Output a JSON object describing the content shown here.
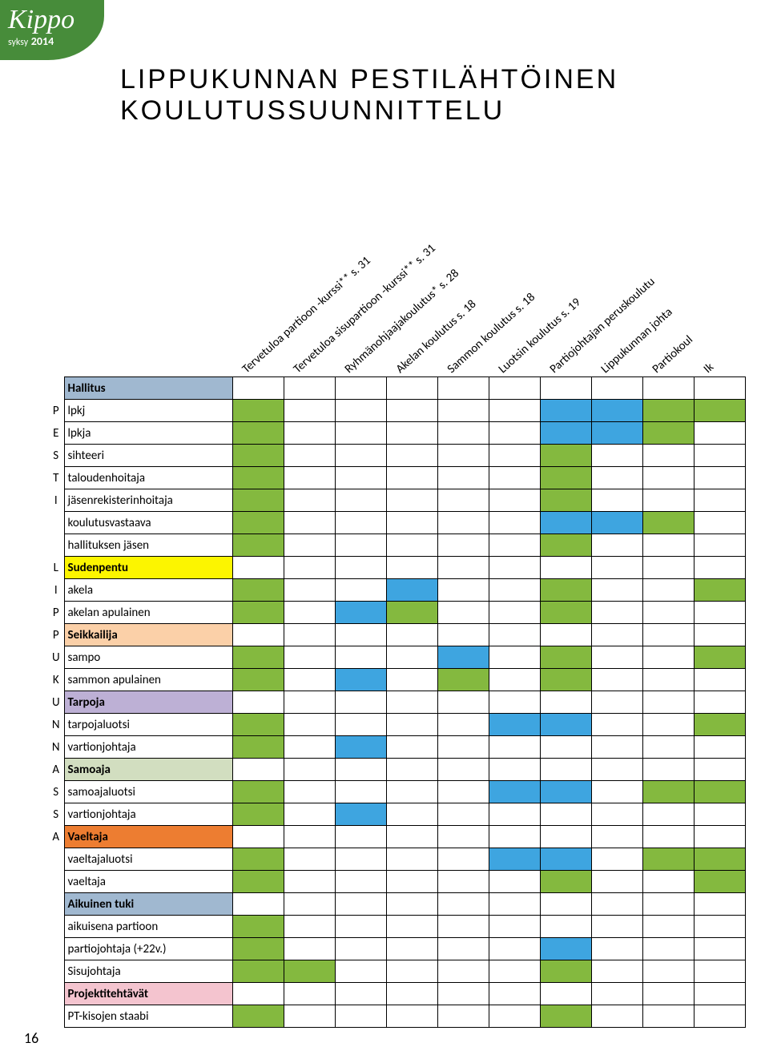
{
  "logo": {
    "name": "Kippo",
    "sub": "syksy",
    "year": "2014"
  },
  "title_line1": "LIPPUKUNNAN PESTILÄHTÖINEN",
  "title_line2": "KOULUTUSSUUNNITTELU",
  "page_number": "16",
  "num_data_cols": 10,
  "colors": {
    "green": "#84b93f",
    "blue": "#3ea5e0",
    "yellow": "#fcf500",
    "orange_light": "#fbd0a8",
    "purple": "#bdb0d5",
    "sage": "#d2dec0",
    "orange": "#ed7d31",
    "steel": "#a0b8d0",
    "pink": "#f4c4cf",
    "none": "#ffffff",
    "border": "#000000"
  },
  "diagonal_headers": [
    "Tervetuloa partioon -kurssi** s. 31",
    "Tervetuloa sisupartioon -kurssi** s. 31",
    "Ryhmänohjaajakoulutus* s. 28",
    "Akelan koulutus s. 18",
    "Sammon koulutus s. 18",
    "Luotsin koulutus s. 19",
    "Partiojohtajan peruskoulutu",
    "Lippukunnan johta",
    "Partiokoul",
    "Ik"
  ],
  "rows": [
    {
      "letter": "",
      "label": "Hallitus",
      "label_bg": "steel",
      "cells": [
        "",
        "",
        "",
        "",
        "",
        "",
        "",
        "",
        "",
        ""
      ]
    },
    {
      "letter": "P",
      "label": "lpkj",
      "label_bg": "none",
      "cells": [
        "green",
        "",
        "",
        "",
        "",
        "",
        "blue",
        "blue",
        "green",
        "green"
      ]
    },
    {
      "letter": "E",
      "label": "lpkja",
      "label_bg": "none",
      "cells": [
        "green",
        "",
        "",
        "",
        "",
        "",
        "blue",
        "blue",
        "green",
        ""
      ]
    },
    {
      "letter": "S",
      "label": "sihteeri",
      "label_bg": "none",
      "cells": [
        "green",
        "",
        "",
        "",
        "",
        "",
        "green",
        "",
        "",
        ""
      ]
    },
    {
      "letter": "T",
      "label": "taloudenhoitaja",
      "label_bg": "none",
      "cells": [
        "green",
        "",
        "",
        "",
        "",
        "",
        "green",
        "",
        "",
        ""
      ]
    },
    {
      "letter": "I",
      "label": "jäsenrekisterinhoitaja",
      "label_bg": "none",
      "cells": [
        "green",
        "",
        "",
        "",
        "",
        "",
        "green",
        "",
        "",
        ""
      ]
    },
    {
      "letter": "",
      "label": "koulutusvastaava",
      "label_bg": "none",
      "cells": [
        "green",
        "",
        "",
        "",
        "",
        "",
        "blue",
        "blue",
        "green",
        ""
      ]
    },
    {
      "letter": "",
      "label": "hallituksen jäsen",
      "label_bg": "none",
      "cells": [
        "green",
        "",
        "",
        "",
        "",
        "",
        "green",
        "",
        "",
        ""
      ]
    },
    {
      "letter": "L",
      "label": "Sudenpentu",
      "label_bg": "yellow",
      "cells": [
        "",
        "",
        "",
        "",
        "",
        "",
        "",
        "",
        "",
        ""
      ]
    },
    {
      "letter": "I",
      "label": "akela",
      "label_bg": "none",
      "cells": [
        "green",
        "",
        "",
        "blue",
        "",
        "",
        "green",
        "",
        "",
        "green"
      ]
    },
    {
      "letter": "P",
      "label": "akelan apulainen",
      "label_bg": "none",
      "cells": [
        "green",
        "",
        "blue",
        "green",
        "",
        "",
        "green",
        "",
        "",
        ""
      ]
    },
    {
      "letter": "P",
      "label": "Seikkailija",
      "label_bg": "orange_light",
      "cells": [
        "",
        "",
        "",
        "",
        "",
        "",
        "",
        "",
        "",
        ""
      ]
    },
    {
      "letter": "U",
      "label": "sampo",
      "label_bg": "none",
      "cells": [
        "green",
        "",
        "",
        "",
        "blue",
        "",
        "green",
        "",
        "",
        "green"
      ]
    },
    {
      "letter": "K",
      "label": "sammon apulainen",
      "label_bg": "none",
      "cells": [
        "green",
        "",
        "blue",
        "",
        "green",
        "",
        "green",
        "",
        "",
        ""
      ]
    },
    {
      "letter": "U",
      "label": "Tarpoja",
      "label_bg": "purple",
      "cells": [
        "",
        "",
        "",
        "",
        "",
        "",
        "",
        "",
        "",
        ""
      ]
    },
    {
      "letter": "N",
      "label": "tarpojaluotsi",
      "label_bg": "none",
      "cells": [
        "green",
        "",
        "",
        "",
        "",
        "blue",
        "blue",
        "",
        "",
        "green"
      ]
    },
    {
      "letter": "N",
      "label": "vartionjohtaja",
      "label_bg": "none",
      "cells": [
        "green",
        "",
        "blue",
        "",
        "",
        "",
        "",
        "",
        "",
        ""
      ]
    },
    {
      "letter": "A",
      "label": "Samoaja",
      "label_bg": "sage",
      "cells": [
        "",
        "",
        "",
        "",
        "",
        "",
        "",
        "",
        "",
        ""
      ]
    },
    {
      "letter": "S",
      "label": "samoajaluotsi",
      "label_bg": "none",
      "cells": [
        "green",
        "",
        "",
        "",
        "",
        "blue",
        "blue",
        "",
        "green",
        "green"
      ]
    },
    {
      "letter": "S",
      "label": "vartionjohtaja",
      "label_bg": "none",
      "cells": [
        "green",
        "",
        "blue",
        "",
        "",
        "",
        "",
        "",
        "",
        ""
      ]
    },
    {
      "letter": "A",
      "label": "Vaeltaja",
      "label_bg": "orange",
      "cells": [
        "",
        "",
        "",
        "",
        "",
        "",
        "",
        "",
        "",
        ""
      ]
    },
    {
      "letter": "",
      "label": "vaeltajaluotsi",
      "label_bg": "none",
      "cells": [
        "green",
        "",
        "",
        "",
        "",
        "blue",
        "blue",
        "",
        "green",
        "green"
      ]
    },
    {
      "letter": "",
      "label": "vaeltaja",
      "label_bg": "none",
      "cells": [
        "green",
        "",
        "",
        "",
        "",
        "",
        "green",
        "",
        "",
        "green"
      ]
    },
    {
      "letter": "",
      "label": "Aikuinen tuki",
      "label_bg": "steel",
      "cells": [
        "",
        "",
        "",
        "",
        "",
        "",
        "",
        "",
        "",
        ""
      ]
    },
    {
      "letter": "",
      "label": "aikuisena partioon",
      "label_bg": "none",
      "cells": [
        "green",
        "",
        "",
        "",
        "",
        "",
        "",
        "",
        "",
        ""
      ]
    },
    {
      "letter": "",
      "label": "partiojohtaja (+22v.)",
      "label_bg": "none",
      "cells": [
        "green",
        "",
        "",
        "",
        "",
        "",
        "blue",
        "",
        "",
        ""
      ]
    },
    {
      "letter": "",
      "label": "Sisujohtaja",
      "label_bg": "none",
      "cells": [
        "green",
        "green",
        "",
        "",
        "",
        "",
        "green",
        "",
        "",
        ""
      ]
    },
    {
      "letter": "",
      "label": "Projektitehtävät",
      "label_bg": "pink",
      "cells": [
        "",
        "",
        "",
        "",
        "",
        "",
        "",
        "",
        "",
        ""
      ]
    },
    {
      "letter": "",
      "label": "PT-kisojen staabi",
      "label_bg": "none",
      "cells": [
        "green",
        "",
        "",
        "",
        "",
        "",
        "green",
        "",
        "",
        ""
      ]
    }
  ]
}
